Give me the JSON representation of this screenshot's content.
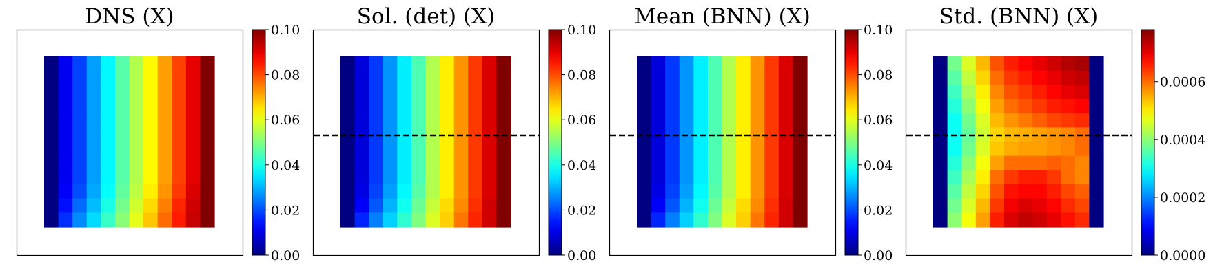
{
  "chart_data": [
    {
      "type": "heatmap",
      "title": "DNS (X)",
      "grid_rows": 12,
      "grid_cols": 12,
      "dashed_line": false,
      "colormap": "jet",
      "colorbar": {
        "min": 0.0,
        "max": 0.1,
        "ticks": [
          "0.00",
          "0.02",
          "0.04",
          "0.06",
          "0.08",
          "0.10"
        ]
      },
      "values": [
        [
          0.0,
          0.011,
          0.019,
          0.028,
          0.037,
          0.046,
          0.055,
          0.063,
          0.072,
          0.081,
          0.09,
          0.1
        ],
        [
          0.0,
          0.011,
          0.019,
          0.028,
          0.037,
          0.046,
          0.055,
          0.063,
          0.072,
          0.081,
          0.09,
          0.1
        ],
        [
          0.0,
          0.011,
          0.019,
          0.028,
          0.037,
          0.046,
          0.055,
          0.063,
          0.072,
          0.081,
          0.09,
          0.1
        ],
        [
          0.0,
          0.011,
          0.019,
          0.028,
          0.037,
          0.046,
          0.055,
          0.063,
          0.072,
          0.081,
          0.09,
          0.1
        ],
        [
          0.0,
          0.011,
          0.019,
          0.028,
          0.037,
          0.046,
          0.055,
          0.063,
          0.072,
          0.081,
          0.09,
          0.1
        ],
        [
          0.0,
          0.011,
          0.019,
          0.028,
          0.037,
          0.046,
          0.055,
          0.063,
          0.072,
          0.081,
          0.09,
          0.1
        ],
        [
          0.0,
          0.011,
          0.019,
          0.028,
          0.037,
          0.046,
          0.055,
          0.063,
          0.072,
          0.081,
          0.09,
          0.1
        ],
        [
          0.0,
          0.011,
          0.019,
          0.028,
          0.037,
          0.046,
          0.055,
          0.063,
          0.072,
          0.081,
          0.09,
          0.1
        ],
        [
          0.0,
          0.011,
          0.019,
          0.028,
          0.037,
          0.046,
          0.055,
          0.063,
          0.072,
          0.081,
          0.09,
          0.1
        ],
        [
          0.0,
          0.012,
          0.02,
          0.029,
          0.038,
          0.047,
          0.056,
          0.064,
          0.073,
          0.082,
          0.091,
          0.1
        ],
        [
          0.0,
          0.014,
          0.023,
          0.031,
          0.04,
          0.049,
          0.058,
          0.066,
          0.075,
          0.084,
          0.092,
          0.1
        ],
        [
          0.0,
          0.017,
          0.026,
          0.034,
          0.043,
          0.051,
          0.06,
          0.068,
          0.077,
          0.085,
          0.093,
          0.1
        ]
      ]
    },
    {
      "type": "heatmap",
      "title": "Sol. (det) (X)",
      "grid_rows": 12,
      "grid_cols": 12,
      "dashed_line": true,
      "colormap": "jet",
      "colorbar": {
        "min": 0.0,
        "max": 0.1,
        "ticks": [
          "0.00",
          "0.02",
          "0.04",
          "0.06",
          "0.08",
          "0.10"
        ]
      },
      "values": [
        [
          0.0,
          0.009,
          0.018,
          0.027,
          0.036,
          0.045,
          0.055,
          0.064,
          0.073,
          0.082,
          0.091,
          0.1
        ],
        [
          0.0,
          0.009,
          0.018,
          0.027,
          0.036,
          0.045,
          0.055,
          0.064,
          0.073,
          0.082,
          0.091,
          0.1
        ],
        [
          0.0,
          0.009,
          0.018,
          0.027,
          0.036,
          0.045,
          0.055,
          0.064,
          0.073,
          0.082,
          0.091,
          0.1
        ],
        [
          0.0,
          0.009,
          0.018,
          0.027,
          0.036,
          0.045,
          0.055,
          0.064,
          0.073,
          0.082,
          0.091,
          0.1
        ],
        [
          0.0,
          0.009,
          0.018,
          0.027,
          0.036,
          0.045,
          0.055,
          0.064,
          0.073,
          0.082,
          0.091,
          0.1
        ],
        [
          0.0,
          0.009,
          0.018,
          0.027,
          0.036,
          0.045,
          0.055,
          0.064,
          0.073,
          0.082,
          0.091,
          0.1
        ],
        [
          0.0,
          0.009,
          0.018,
          0.027,
          0.036,
          0.045,
          0.055,
          0.064,
          0.073,
          0.082,
          0.091,
          0.1
        ],
        [
          0.0,
          0.009,
          0.018,
          0.027,
          0.036,
          0.045,
          0.055,
          0.064,
          0.073,
          0.082,
          0.091,
          0.1
        ],
        [
          0.0,
          0.009,
          0.018,
          0.027,
          0.036,
          0.045,
          0.055,
          0.064,
          0.073,
          0.082,
          0.091,
          0.1
        ],
        [
          0.0,
          0.01,
          0.019,
          0.028,
          0.037,
          0.046,
          0.055,
          0.064,
          0.073,
          0.082,
          0.091,
          0.1
        ],
        [
          0.0,
          0.012,
          0.021,
          0.03,
          0.039,
          0.048,
          0.057,
          0.066,
          0.074,
          0.083,
          0.092,
          0.1
        ],
        [
          0.0,
          0.016,
          0.025,
          0.033,
          0.042,
          0.05,
          0.059,
          0.067,
          0.076,
          0.084,
          0.092,
          0.1
        ]
      ]
    },
    {
      "type": "heatmap",
      "title": "Mean (BNN) (X)",
      "grid_rows": 12,
      "grid_cols": 12,
      "dashed_line": true,
      "colormap": "jet",
      "colorbar": {
        "min": 0.0,
        "max": 0.1,
        "ticks": [
          "0.00",
          "0.02",
          "0.04",
          "0.06",
          "0.08",
          "0.10"
        ]
      },
      "values": [
        [
          0.0,
          0.009,
          0.018,
          0.027,
          0.036,
          0.045,
          0.055,
          0.064,
          0.073,
          0.082,
          0.091,
          0.1
        ],
        [
          0.0,
          0.009,
          0.018,
          0.027,
          0.036,
          0.045,
          0.055,
          0.064,
          0.073,
          0.082,
          0.091,
          0.1
        ],
        [
          0.0,
          0.009,
          0.018,
          0.027,
          0.036,
          0.045,
          0.055,
          0.064,
          0.073,
          0.082,
          0.091,
          0.1
        ],
        [
          0.0,
          0.009,
          0.018,
          0.027,
          0.036,
          0.045,
          0.055,
          0.064,
          0.073,
          0.082,
          0.091,
          0.1
        ],
        [
          0.0,
          0.009,
          0.018,
          0.027,
          0.036,
          0.045,
          0.055,
          0.064,
          0.073,
          0.082,
          0.091,
          0.1
        ],
        [
          0.0,
          0.009,
          0.018,
          0.027,
          0.036,
          0.045,
          0.055,
          0.064,
          0.073,
          0.082,
          0.091,
          0.1
        ],
        [
          0.0,
          0.009,
          0.018,
          0.027,
          0.036,
          0.045,
          0.055,
          0.064,
          0.073,
          0.082,
          0.091,
          0.1
        ],
        [
          0.0,
          0.009,
          0.018,
          0.027,
          0.036,
          0.045,
          0.055,
          0.064,
          0.073,
          0.082,
          0.091,
          0.1
        ],
        [
          0.0,
          0.009,
          0.018,
          0.027,
          0.036,
          0.045,
          0.055,
          0.064,
          0.073,
          0.082,
          0.091,
          0.1
        ],
        [
          0.0,
          0.01,
          0.019,
          0.028,
          0.037,
          0.046,
          0.055,
          0.064,
          0.073,
          0.082,
          0.091,
          0.1
        ],
        [
          0.0,
          0.012,
          0.021,
          0.03,
          0.039,
          0.048,
          0.057,
          0.066,
          0.074,
          0.083,
          0.092,
          0.1
        ],
        [
          0.0,
          0.016,
          0.025,
          0.033,
          0.042,
          0.05,
          0.059,
          0.067,
          0.076,
          0.084,
          0.092,
          0.1
        ]
      ]
    },
    {
      "type": "heatmap",
      "title": "Std. (BNN) (X)",
      "grid_rows": 12,
      "grid_cols": 12,
      "dashed_line": true,
      "colormap": "jet",
      "colorbar": {
        "min": 0.0,
        "max": 0.00078,
        "ticks": [
          "0.0000",
          "0.0002",
          "0.0004",
          "0.0006"
        ]
      },
      "values": [
        [
          0.0,
          0.00038,
          0.00046,
          0.00054,
          0.00062,
          0.00066,
          0.00068,
          0.0007,
          0.00072,
          0.00074,
          0.00075,
          0.0
        ],
        [
          0.0,
          0.00036,
          0.00044,
          0.00052,
          0.0006,
          0.00064,
          0.00066,
          0.00068,
          0.0007,
          0.00072,
          0.00073,
          0.0
        ],
        [
          0.0,
          0.00034,
          0.00042,
          0.0005,
          0.00058,
          0.00062,
          0.00064,
          0.00066,
          0.00068,
          0.0007,
          0.00071,
          0.0
        ],
        [
          0.0,
          0.00032,
          0.0004,
          0.00048,
          0.00056,
          0.0006,
          0.00062,
          0.00064,
          0.00066,
          0.00067,
          0.00068,
          0.0
        ],
        [
          0.0,
          0.0003,
          0.00038,
          0.00046,
          0.00054,
          0.00057,
          0.00059,
          0.00061,
          0.00063,
          0.00064,
          0.00065,
          0.0
        ],
        [
          0.0,
          0.0003,
          0.00037,
          0.00045,
          0.00052,
          0.00054,
          0.00055,
          0.00056,
          0.00057,
          0.00058,
          0.0006,
          0.0
        ],
        [
          0.0,
          0.0003,
          0.00038,
          0.00046,
          0.00053,
          0.00055,
          0.00056,
          0.00056,
          0.00057,
          0.00058,
          0.0006,
          0.0
        ],
        [
          0.0,
          0.00032,
          0.0004,
          0.00048,
          0.00056,
          0.0006,
          0.0006,
          0.0006,
          0.00061,
          0.0006,
          0.00058,
          0.0
        ],
        [
          0.0,
          0.00034,
          0.00042,
          0.0005,
          0.0006,
          0.00064,
          0.00066,
          0.00066,
          0.00064,
          0.0006,
          0.00058,
          0.0
        ],
        [
          0.0,
          0.00036,
          0.00044,
          0.00052,
          0.00062,
          0.00067,
          0.00068,
          0.00068,
          0.00066,
          0.00063,
          0.00061,
          0.0
        ],
        [
          0.0,
          0.00038,
          0.00046,
          0.00054,
          0.00064,
          0.00069,
          0.00071,
          0.0007,
          0.00068,
          0.00065,
          0.00063,
          0.0
        ],
        [
          0.0,
          0.0004,
          0.00048,
          0.00056,
          0.00066,
          0.00071,
          0.00073,
          0.00072,
          0.0007,
          0.00067,
          0.00065,
          0.0
        ]
      ]
    }
  ]
}
